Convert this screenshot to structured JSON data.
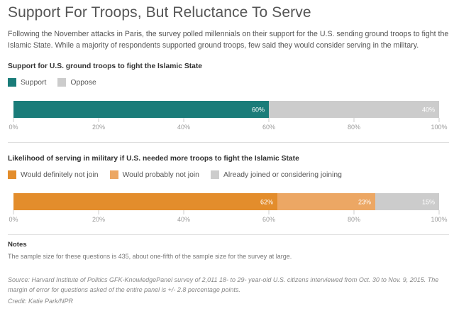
{
  "title": "Support For Troops, But Reluctance To Serve",
  "dek": "Following the November attacks in Paris, the survey polled millennials on their support for the U.S. sending ground troops to fight the Islamic State. While a majority of respondents supported ground troops, few said they would consider serving in the military.",
  "chart_data": [
    {
      "type": "bar",
      "orientation": "horizontal-stacked-100",
      "title": "Support for U.S. ground troops to fight the Islamic State",
      "series": [
        {
          "name": "Support",
          "values": [
            60
          ],
          "label": "60%",
          "color": "#1a7c79"
        },
        {
          "name": "Oppose",
          "values": [
            40
          ],
          "label": "40%",
          "color": "#cccccc"
        }
      ],
      "xlim": [
        0,
        100
      ],
      "ticks": [
        "0%",
        "20%",
        "40%",
        "60%",
        "80%",
        "100%"
      ],
      "legend": "top-left"
    },
    {
      "type": "bar",
      "orientation": "horizontal-stacked-100",
      "title": "Likelihood of serving in military if U.S. needed more troops to fight the Islamic State",
      "series": [
        {
          "name": "Would definitely not join",
          "values": [
            62
          ],
          "label": "62%",
          "color": "#e38d2c"
        },
        {
          "name": "Would probably not join",
          "values": [
            23
          ],
          "label": "23%",
          "color": "#eca764"
        },
        {
          "name": "Already joined or considering joining",
          "values": [
            15
          ],
          "label": "15%",
          "color": "#cccccc"
        }
      ],
      "xlim": [
        0,
        100
      ],
      "ticks": [
        "0%",
        "20%",
        "40%",
        "60%",
        "80%",
        "100%"
      ],
      "legend": "top-left"
    }
  ],
  "notes": {
    "heading": "Notes",
    "text": "The sample size for these questions is 435, about one-fifth of the sample size for the survey at large."
  },
  "source": "Source: Harvard Institute of Politics GFK-KnowledgePanel survey of 2,011 18- to 29- year-old U.S. citizens interviewed from Oct. 30 to Nov. 9, 2015. The margin of error for questions asked of the entire panel is +/- 2.8 percentage points.",
  "credit": "Credit: Katie Park/NPR"
}
